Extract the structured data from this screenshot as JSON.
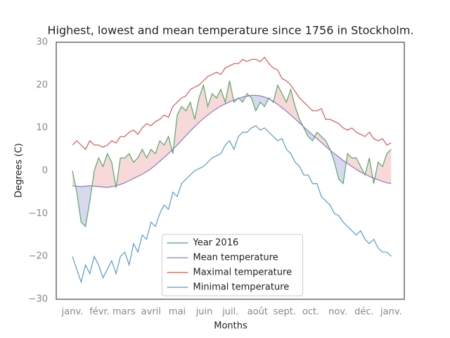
{
  "chart_data": {
    "type": "line",
    "title": "Highest, lowest and mean temperature since 1756 in Stockholm.",
    "x_label": "Months",
    "y_label": "Degrees (C)",
    "x": [
      0,
      5,
      10,
      15,
      20,
      25,
      30,
      35,
      40,
      45,
      50,
      55,
      60,
      65,
      70,
      75,
      80,
      85,
      90,
      95,
      100,
      105,
      110,
      115,
      120,
      125,
      130,
      135,
      140,
      145,
      150,
      155,
      160,
      165,
      170,
      175,
      180,
      185,
      190,
      195,
      200,
      205,
      210,
      215,
      220,
      225,
      230,
      235,
      240,
      245,
      250,
      255,
      260,
      265,
      270,
      275,
      280,
      285,
      290,
      295,
      300,
      305,
      310,
      315,
      320,
      325,
      330,
      335,
      340,
      345,
      350,
      355,
      360,
      365
    ],
    "series": [
      {
        "name": "Year 2016",
        "color": "#55a868",
        "values": [
          0,
          -5,
          -12,
          -13,
          -7,
          0,
          3,
          1,
          4,
          2,
          -4,
          3,
          3,
          4,
          2,
          3,
          5,
          3,
          5,
          4,
          7,
          6,
          8,
          4,
          13,
          15,
          14,
          16,
          12,
          17,
          20,
          15,
          18,
          17,
          19,
          16,
          21,
          16,
          17,
          16,
          18,
          17,
          14,
          16,
          15,
          17,
          16,
          20,
          18,
          16,
          19,
          15,
          12,
          10,
          8,
          7,
          9,
          8,
          7,
          5,
          2,
          -2,
          -3,
          4,
          3,
          3,
          1,
          -1,
          3,
          -3,
          2,
          1,
          4,
          5
        ]
      },
      {
        "name": "Mean temperature",
        "color": "#8c7ac0",
        "values": [
          -3.5,
          -3.6,
          -3.7,
          -3.6,
          -3.5,
          -3.6,
          -3.7,
          -3.8,
          -3.9,
          -3.7,
          -3.5,
          -3.2,
          -2.8,
          -2.3,
          -1.8,
          -1.3,
          -0.8,
          -0.2,
          0.5,
          1.3,
          2.2,
          3.1,
          4.0,
          5.0,
          6.0,
          7.1,
          8.2,
          9.3,
          10.3,
          11.3,
          12.2,
          13.0,
          13.8,
          14.5,
          15.1,
          15.6,
          16.1,
          16.5,
          16.9,
          17.2,
          17.4,
          17.6,
          17.6,
          17.5,
          17.2,
          16.8,
          16.2,
          15.5,
          14.7,
          13.9,
          13.0,
          12.1,
          11.2,
          10.2,
          9.3,
          8.4,
          7.5,
          6.6,
          5.7,
          4.8,
          4.0,
          3.2,
          2.4,
          1.7,
          1.0,
          0.3,
          -0.3,
          -0.8,
          -1.3,
          -1.7,
          -2.1,
          -2.5,
          -2.8,
          -3.0
        ]
      },
      {
        "name": "Maximal temperature",
        "color": "#dd5555",
        "values": [
          6,
          7,
          6,
          5,
          7,
          6,
          6,
          5.5,
          6,
          7,
          6.5,
          8,
          8,
          9,
          9.5,
          8.5,
          10,
          11,
          10.5,
          11.5,
          12,
          13,
          12.5,
          15,
          16,
          17,
          17.5,
          19,
          19.5,
          20,
          21,
          22,
          22.5,
          23,
          22.5,
          24,
          24.5,
          25,
          25,
          26,
          25.5,
          26,
          26,
          25.5,
          26.5,
          25,
          24,
          23.5,
          21.5,
          21,
          20,
          18.5,
          17,
          16,
          15,
          14,
          14,
          14.5,
          12,
          12,
          11.5,
          11,
          10,
          9.5,
          10,
          9,
          8.5,
          8,
          9,
          7.5,
          7,
          7.5,
          6,
          6.5
        ]
      },
      {
        "name": "Minimal temperature",
        "color": "#5a9ac8",
        "values": [
          -20,
          -23,
          -26,
          -22,
          -24,
          -20,
          -22,
          -25,
          -23,
          -21,
          -24,
          -20,
          -19,
          -22,
          -17,
          -19,
          -15,
          -16,
          -12,
          -13,
          -10,
          -8,
          -9,
          -5,
          -6,
          -3,
          -2,
          -1,
          0,
          0.5,
          1,
          2,
          3,
          3.5,
          4,
          6,
          7,
          5,
          8,
          9,
          9,
          10,
          10.5,
          9.5,
          10,
          9,
          8,
          7,
          7.5,
          5,
          4,
          2,
          1,
          -1,
          -1,
          -3,
          -3,
          -6,
          -7,
          -8,
          -10,
          -10.5,
          -12,
          -13,
          -14,
          -15,
          -14,
          -16,
          -17,
          -16,
          -18,
          -19,
          -19,
          -20
        ]
      }
    ],
    "fill_between": {
      "series": [
        0,
        1
      ],
      "above_color": "#f7d9d9",
      "below_color": "#d8d9ee"
    },
    "xlim": [
      -18.5,
      380
    ],
    "xticks": [
      {
        "value": 0,
        "label": "janv."
      },
      {
        "value": 31,
        "label": "févr."
      },
      {
        "value": 59,
        "label": "mars"
      },
      {
        "value": 90,
        "label": "avril"
      },
      {
        "value": 120,
        "label": "mai"
      },
      {
        "value": 151,
        "label": "juin"
      },
      {
        "value": 181,
        "label": "juil."
      },
      {
        "value": 212,
        "label": "août"
      },
      {
        "value": 243,
        "label": "sept."
      },
      {
        "value": 273,
        "label": "oct."
      },
      {
        "value": 304,
        "label": "nov."
      },
      {
        "value": 334,
        "label": "déc."
      },
      {
        "value": 365,
        "label": "janv."
      }
    ],
    "ylim": [
      -30,
      30
    ],
    "yticks": [
      {
        "value": -30,
        "label": "−30"
      },
      {
        "value": -20,
        "label": "−20"
      },
      {
        "value": -10,
        "label": "−10"
      },
      0,
      10,
      20,
      30
    ],
    "grid": false,
    "legend": "lower center"
  }
}
